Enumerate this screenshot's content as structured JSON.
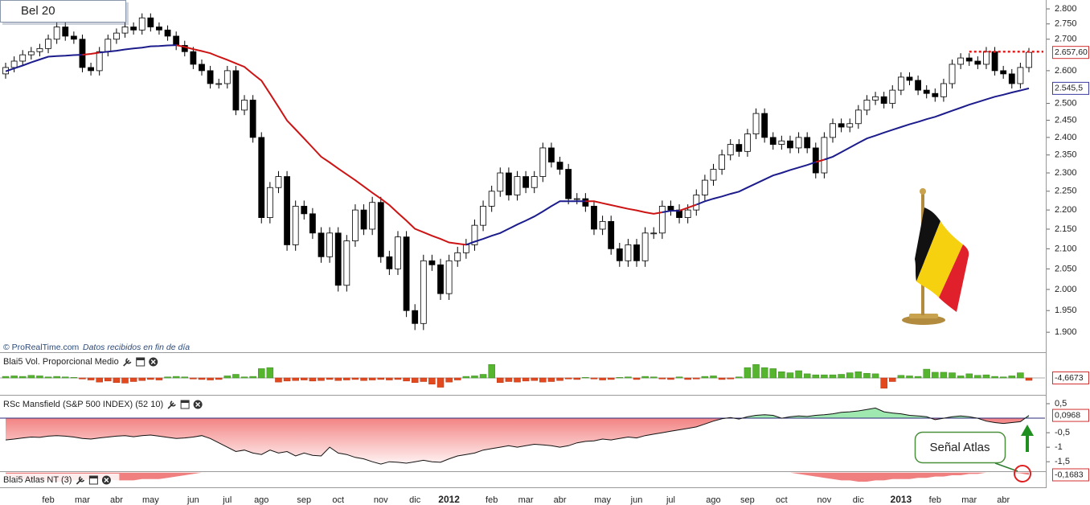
{
  "chart_data": [
    {
      "type": "candlestick",
      "title": "Bel 20",
      "source": "© ProRealTime.com",
      "note": "Datos recibidos en fin de día",
      "log": true,
      "ylim": [
        1855,
        2830
      ],
      "yticks": [
        {
          "value": 2800,
          "label": "2.800"
        },
        {
          "value": 2750,
          "label": "2.750"
        },
        {
          "value": 2700,
          "label": "2.700"
        },
        {
          "value": 2600,
          "label": "2.600"
        },
        {
          "value": 2500,
          "label": "2.500"
        },
        {
          "value": 2450,
          "label": "2.450"
        },
        {
          "value": 2400,
          "label": "2.400"
        },
        {
          "value": 2350,
          "label": "2.350"
        },
        {
          "value": 2300,
          "label": "2.300"
        },
        {
          "value": 2250,
          "label": "2.250"
        },
        {
          "value": 2200,
          "label": "2.200"
        },
        {
          "value": 2150,
          "label": "2.150"
        },
        {
          "value": 2100,
          "label": "2.100"
        },
        {
          "value": 2050,
          "label": "2.050"
        },
        {
          "value": 2000,
          "label": "2.000"
        },
        {
          "value": 1950,
          "label": "1.950"
        },
        {
          "value": 1900,
          "label": "1.900"
        }
      ],
      "categories": [
        null,
        null,
        null,
        null,
        null,
        "feb",
        null,
        null,
        null,
        "mar",
        null,
        null,
        null,
        "abr",
        null,
        null,
        null,
        "may",
        null,
        null,
        null,
        null,
        "jun",
        null,
        null,
        null,
        "jul",
        null,
        null,
        null,
        "ago",
        null,
        null,
        null,
        null,
        "sep",
        null,
        null,
        null,
        "oct",
        null,
        null,
        null,
        null,
        "nov",
        null,
        null,
        null,
        "dic",
        null,
        null,
        null,
        "2012",
        null,
        null,
        null,
        null,
        "feb",
        null,
        null,
        null,
        "mar",
        null,
        null,
        null,
        "abr",
        null,
        null,
        null,
        null,
        "may",
        null,
        null,
        null,
        "jun",
        null,
        null,
        null,
        "jul",
        null,
        null,
        null,
        null,
        "ago",
        null,
        null,
        null,
        "sep",
        null,
        null,
        null,
        "oct",
        null,
        null,
        null,
        null,
        "nov",
        null,
        null,
        null,
        "dic",
        null,
        null,
        null,
        null,
        "2013",
        null,
        null,
        null,
        "feb",
        null,
        null,
        null,
        "mar",
        null,
        null,
        null,
        "abr",
        null,
        null,
        null
      ],
      "open": [
        2590,
        2610,
        2630,
        2650,
        2660,
        2670,
        2700,
        2740,
        2710,
        2700,
        2610,
        2600,
        2660,
        2700,
        2720,
        2740,
        2730,
        2770,
        2740,
        2730,
        2710,
        2680,
        2660,
        2620,
        2600,
        2560,
        2560,
        2600,
        2480,
        2510,
        2400,
        2180,
        2260,
        2290,
        2110,
        2210,
        2190,
        2140,
        2080,
        2140,
        2010,
        2120,
        2200,
        2150,
        2220,
        2080,
        2050,
        2130,
        1950,
        1920,
        2070,
        2060,
        1990,
        2070,
        2090,
        2110,
        2160,
        2210,
        2250,
        2300,
        2240,
        2290,
        2260,
        2290,
        2370,
        2330,
        2310,
        2230,
        2230,
        2210,
        2150,
        2170,
        2100,
        2070,
        2110,
        2070,
        2140,
        2140,
        2210,
        2200,
        2180,
        2200,
        2240,
        2280,
        2310,
        2350,
        2380,
        2360,
        2410,
        2470,
        2400,
        2380,
        2390,
        2370,
        2400,
        2370,
        2300,
        2400,
        2440,
        2430,
        2440,
        2480,
        2510,
        2520,
        2500,
        2540,
        2580,
        2570,
        2540,
        2530,
        2520,
        2560,
        2620,
        2640,
        2630,
        2620,
        2660,
        2600,
        2590,
        2560,
        2610
      ],
      "high": [
        2625,
        2645,
        2665,
        2675,
        2685,
        2715,
        2755,
        2755,
        2725,
        2715,
        2625,
        2675,
        2715,
        2735,
        2755,
        2755,
        2785,
        2785,
        2755,
        2745,
        2725,
        2695,
        2675,
        2635,
        2615,
        2575,
        2615,
        2615,
        2525,
        2525,
        2415,
        2275,
        2305,
        2305,
        2225,
        2225,
        2205,
        2155,
        2155,
        2155,
        2135,
        2215,
        2215,
        2235,
        2235,
        2095,
        2145,
        2145,
        1965,
        2085,
        2085,
        2075,
        2085,
        2105,
        2125,
        2175,
        2225,
        2265,
        2315,
        2315,
        2305,
        2305,
        2305,
        2385,
        2385,
        2345,
        2325,
        2245,
        2245,
        2225,
        2185,
        2185,
        2115,
        2125,
        2125,
        2155,
        2155,
        2225,
        2225,
        2215,
        2215,
        2255,
        2295,
        2325,
        2365,
        2395,
        2395,
        2425,
        2485,
        2485,
        2415,
        2405,
        2405,
        2415,
        2415,
        2385,
        2415,
        2455,
        2455,
        2455,
        2495,
        2525,
        2535,
        2535,
        2555,
        2595,
        2595,
        2585,
        2555,
        2545,
        2575,
        2635,
        2655,
        2655,
        2645,
        2675,
        2675,
        2615,
        2605,
        2625,
        2672
      ],
      "low": [
        2575,
        2595,
        2615,
        2635,
        2645,
        2655,
        2685,
        2695,
        2685,
        2595,
        2585,
        2585,
        2645,
        2685,
        2705,
        2715,
        2715,
        2725,
        2715,
        2695,
        2665,
        2645,
        2605,
        2585,
        2545,
        2545,
        2545,
        2465,
        2465,
        2385,
        2165,
        2165,
        2245,
        2095,
        2095,
        2175,
        2125,
        2065,
        2065,
        1995,
        1995,
        2105,
        2135,
        2135,
        2065,
        2035,
        2035,
        1935,
        1905,
        1905,
        2045,
        1975,
        1975,
        2055,
        2075,
        2095,
        2145,
        2195,
        2235,
        2225,
        2225,
        2245,
        2245,
        2275,
        2315,
        2295,
        2215,
        2215,
        2195,
        2135,
        2135,
        2085,
        2055,
        2055,
        2055,
        2055,
        2125,
        2125,
        2185,
        2165,
        2165,
        2185,
        2225,
        2265,
        2295,
        2335,
        2345,
        2345,
        2395,
        2385,
        2365,
        2365,
        2355,
        2355,
        2355,
        2285,
        2285,
        2385,
        2415,
        2415,
        2425,
        2465,
        2495,
        2485,
        2485,
        2525,
        2555,
        2525,
        2515,
        2505,
        2505,
        2545,
        2605,
        2615,
        2605,
        2605,
        2585,
        2575,
        2545,
        2545,
        2595
      ],
      "close": [
        2610,
        2630,
        2650,
        2660,
        2670,
        2700,
        2740,
        2710,
        2700,
        2610,
        2600,
        2660,
        2700,
        2720,
        2740,
        2730,
        2770,
        2740,
        2730,
        2710,
        2680,
        2660,
        2620,
        2600,
        2560,
        2560,
        2600,
        2480,
        2510,
        2400,
        2180,
        2260,
        2290,
        2110,
        2210,
        2190,
        2140,
        2080,
        2140,
        2010,
        2120,
        2200,
        2150,
        2220,
        2080,
        2050,
        2130,
        1950,
        1920,
        2070,
        2060,
        1990,
        2070,
        2090,
        2110,
        2160,
        2210,
        2250,
        2300,
        2240,
        2290,
        2260,
        2290,
        2370,
        2330,
        2310,
        2230,
        2230,
        2210,
        2150,
        2170,
        2100,
        2070,
        2110,
        2070,
        2140,
        2140,
        2210,
        2200,
        2180,
        2200,
        2240,
        2280,
        2310,
        2350,
        2380,
        2360,
        2410,
        2470,
        2400,
        2380,
        2390,
        2370,
        2400,
        2370,
        2300,
        2400,
        2440,
        2430,
        2440,
        2480,
        2510,
        2520,
        2500,
        2540,
        2580,
        2570,
        2540,
        2530,
        2520,
        2560,
        2620,
        2640,
        2630,
        2620,
        2660,
        2600,
        2590,
        2560,
        2610,
        2657.6
      ],
      "last_label": "2.657,60",
      "up_color": "#ffffff",
      "down_color": "#000000",
      "ma_values": [
        2598,
        2607,
        2616,
        2626,
        2635,
        2644,
        2646,
        2647,
        2649,
        2650,
        2653,
        2657,
        2660,
        2663,
        2667,
        2670,
        2673,
        2677,
        2678,
        2680,
        2681,
        2675,
        2668,
        2662,
        2655,
        2644,
        2634,
        2623,
        2612,
        2590,
        2569,
        2529,
        2489,
        2449,
        2423,
        2397,
        2371,
        2345,
        2329,
        2312,
        2296,
        2280,
        2263,
        2246,
        2230,
        2213,
        2192,
        2172,
        2151,
        2142,
        2133,
        2125,
        2116,
        2113,
        2110,
        2118,
        2125,
        2133,
        2140,
        2151,
        2162,
        2172,
        2183,
        2196,
        2210,
        2223,
        2223,
        2223,
        2223,
        2223,
        2218,
        2213,
        2208,
        2203,
        2199,
        2194,
        2190,
        2194,
        2198,
        2198,
        2206,
        2214,
        2223,
        2230,
        2236,
        2243,
        2249,
        2260,
        2271,
        2282,
        2293,
        2300,
        2308,
        2315,
        2322,
        2330,
        2337,
        2345,
        2358,
        2371,
        2384,
        2397,
        2405,
        2414,
        2422,
        2430,
        2438,
        2445,
        2453,
        2460,
        2469,
        2478,
        2487,
        2496,
        2504,
        2512,
        2520,
        2526,
        2533,
        2539,
        2545.5
      ],
      "ma_last_label": "2.545,5",
      "ma_color_price_above": "#1c1c8c",
      "ma_color_price_below": "#cc1414",
      "resistance": 2660,
      "resistance_color": "#e02020"
    },
    {
      "type": "bar",
      "title": "Blai5 Vol. Proporcional Medio",
      "ylim": [
        -28,
        28
      ],
      "values": [
        3,
        4,
        3,
        5,
        4,
        2,
        3,
        2,
        1,
        -2,
        -4,
        -8,
        -6,
        -9,
        -10,
        -7,
        -5,
        -3,
        -4,
        2,
        3,
        2,
        -2,
        -3,
        -4,
        -3,
        4,
        7,
        2,
        3,
        18,
        20,
        -8,
        -6,
        -5,
        -4,
        -6,
        -5,
        -3,
        -5,
        -4,
        -3,
        -5,
        -4,
        -3,
        -4,
        -3,
        -6,
        -9,
        -7,
        -12,
        -18,
        -8,
        -4,
        3,
        4,
        7,
        26,
        -9,
        -7,
        -8,
        -6,
        -5,
        -8,
        -7,
        -5,
        -2,
        -3,
        1,
        -2,
        -4,
        -3,
        1,
        2,
        -3,
        3,
        2,
        -2,
        -3,
        2,
        -3,
        -2,
        3,
        4,
        -3,
        -2,
        2,
        20,
        26,
        20,
        18,
        12,
        10,
        14,
        8,
        6,
        6,
        6,
        7,
        10,
        12,
        9,
        8,
        -20,
        -7,
        5,
        4,
        3,
        17,
        11,
        11,
        10,
        4,
        8,
        5,
        6,
        3,
        2,
        4,
        10,
        -4.6673
      ],
      "last_label": "-4,6673",
      "positive_color": "#55b52e",
      "negative_color": "#e2491f"
    },
    {
      "type": "area",
      "title": "RSc Mansfield (S&P 500 INDEX) (52 10)",
      "ylim": [
        -1.8,
        0.75
      ],
      "yticks": [
        {
          "value": 0.5,
          "label": "0,5"
        },
        {
          "value": -0.5,
          "label": "-0,5"
        },
        -1,
        {
          "value": -1.5,
          "label": "-1,5"
        }
      ],
      "values": [
        -0.75,
        -0.72,
        -0.68,
        -0.65,
        -0.66,
        -0.62,
        -0.6,
        -0.62,
        -0.65,
        -0.7,
        -0.72,
        -0.68,
        -0.65,
        -0.62,
        -0.6,
        -0.64,
        -0.6,
        -0.58,
        -0.62,
        -0.66,
        -0.7,
        -0.68,
        -0.65,
        -0.6,
        -0.7,
        -0.85,
        -1.0,
        -1.15,
        -1.1,
        -1.2,
        -1.25,
        -1.1,
        -1.2,
        -1.15,
        -1.3,
        -1.2,
        -1.28,
        -1.3,
        -1.0,
        -1.2,
        -1.25,
        -1.35,
        -1.4,
        -1.5,
        -1.58,
        -1.5,
        -1.52,
        -1.55,
        -1.5,
        -1.45,
        -1.5,
        -1.52,
        -1.4,
        -1.3,
        -1.25,
        -1.2,
        -1.1,
        -1.05,
        -1.0,
        -0.95,
        -1.0,
        -0.95,
        -0.9,
        -0.92,
        -0.95,
        -1.0,
        -0.95,
        -0.85,
        -0.8,
        -0.78,
        -0.72,
        -0.75,
        -0.7,
        -0.65,
        -0.68,
        -0.6,
        -0.55,
        -0.5,
        -0.45,
        -0.4,
        -0.35,
        -0.3,
        -0.2,
        -0.1,
        -0.02,
        0.02,
        -0.03,
        0.05,
        0.1,
        0.12,
        0.1,
        0.0,
        0.05,
        0.08,
        0.06,
        0.1,
        0.12,
        0.15,
        0.2,
        0.22,
        0.25,
        0.3,
        0.35,
        0.22,
        0.18,
        0.15,
        0.1,
        0.08,
        0.05,
        -0.05,
        0.0,
        0.05,
        0.08,
        0.05,
        0.0,
        -0.1,
        -0.15,
        -0.18,
        -0.15,
        -0.12,
        0.0968
      ],
      "last_label": "0,0968",
      "positive_color": "#9fe8b0",
      "negative_color": "#f09090"
    },
    {
      "type": "area",
      "title": "Blai5 Atlas NT (3)",
      "ylim": [
        -1.2,
        0.05
      ],
      "values": [
        -0.3,
        -0.4,
        -0.5,
        -0.6,
        -0.6,
        -0.6,
        -0.7,
        -0.7,
        -0.6,
        -0.6,
        -0.5,
        -0.5,
        -0.5,
        -0.6,
        -0.6,
        -0.6,
        -0.5,
        -0.5,
        -0.5,
        -0.4,
        -0.3,
        -0.2,
        -0.1,
        0,
        0,
        0,
        0,
        0,
        0,
        0,
        0,
        0,
        0,
        0,
        0,
        0,
        0,
        0,
        0,
        0,
        0,
        0,
        0,
        0,
        0,
        0,
        0,
        0,
        0,
        0,
        0,
        0,
        0,
        0,
        0,
        0,
        0,
        0,
        0,
        0,
        0,
        0,
        0,
        0,
        0,
        0,
        0,
        0,
        0,
        0,
        0,
        0,
        0,
        0,
        0,
        0,
        0,
        0,
        0,
        0,
        0,
        0,
        0,
        0,
        0,
        0,
        0,
        0,
        0,
        0,
        0,
        0,
        0,
        -0.1,
        -0.2,
        -0.3,
        -0.4,
        -0.5,
        -0.6,
        -0.6,
        -0.7,
        -0.7,
        -0.6,
        -0.6,
        -0.5,
        -0.5,
        -0.5,
        -0.4,
        -0.4,
        -0.3,
        -0.3,
        -0.2,
        -0.2,
        -0.1,
        -0.1,
        0,
        0,
        0,
        0,
        -0.05,
        -0.1683
      ],
      "last_label": "-0,1683",
      "positive_color": "#9fe8b0",
      "negative_color": "#f08080",
      "annotation": "Señal Atlas"
    }
  ]
}
